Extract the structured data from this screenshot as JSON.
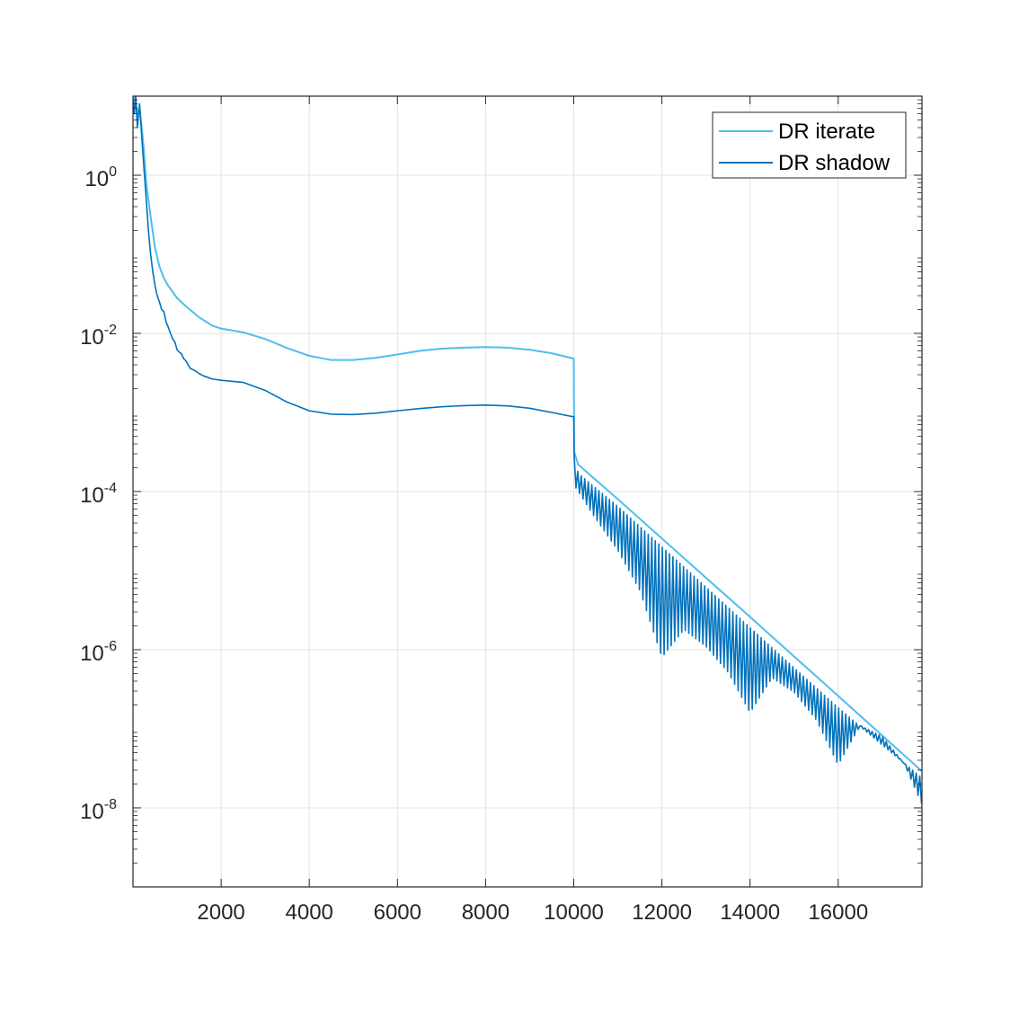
{
  "chart_data": {
    "type": "line",
    "title": "",
    "xlabel": "",
    "ylabel": "",
    "xlim": [
      0,
      17900
    ],
    "ylim": [
      1e-09,
      10
    ],
    "yscale": "log",
    "grid": true,
    "legend_placement": "top-right",
    "x_ticks": [
      {
        "value": 2000,
        "label": "2000"
      },
      {
        "value": 4000,
        "label": "4000"
      },
      {
        "value": 6000,
        "label": "6000"
      },
      {
        "value": 8000,
        "label": "8000"
      },
      {
        "value": 10000,
        "label": "10000"
      },
      {
        "value": 12000,
        "label": "12000"
      },
      {
        "value": 14000,
        "label": "14000"
      },
      {
        "value": 16000,
        "label": "16000"
      }
    ],
    "y_ticks": [
      {
        "value": 1,
        "base": "10",
        "exp": "0"
      },
      {
        "value": 0.01,
        "base": "10",
        "exp": "-2"
      },
      {
        "value": 0.0001,
        "base": "10",
        "exp": "-4"
      },
      {
        "value": 1e-06,
        "base": "10",
        "exp": "-6"
      },
      {
        "value": 1e-08,
        "base": "10",
        "exp": "-8"
      }
    ],
    "series": [
      {
        "name": "DR iterate",
        "color": "#4DBEEE",
        "points": [
          [
            0,
            8
          ],
          [
            50,
            10
          ],
          [
            100,
            6
          ],
          [
            150,
            7
          ],
          [
            200,
            4
          ],
          [
            250,
            2
          ],
          [
            300,
            0.8
          ],
          [
            400,
            0.3
          ],
          [
            500,
            0.12
          ],
          [
            600,
            0.07
          ],
          [
            700,
            0.05
          ],
          [
            800,
            0.04
          ],
          [
            1000,
            0.028
          ],
          [
            1200,
            0.022
          ],
          [
            1500,
            0.016
          ],
          [
            1800,
            0.0125
          ],
          [
            2000,
            0.0115
          ],
          [
            2500,
            0.0103
          ],
          [
            3000,
            0.0085
          ],
          [
            3500,
            0.0065
          ],
          [
            4000,
            0.0052
          ],
          [
            4500,
            0.0046
          ],
          [
            5000,
            0.0046
          ],
          [
            5500,
            0.0049
          ],
          [
            6000,
            0.0054
          ],
          [
            6500,
            0.006
          ],
          [
            7000,
            0.0064
          ],
          [
            7500,
            0.0066
          ],
          [
            8000,
            0.0067
          ],
          [
            8500,
            0.0066
          ],
          [
            9000,
            0.0062
          ],
          [
            9500,
            0.0056
          ],
          [
            10000,
            0.0048
          ],
          [
            10010,
            0.00032
          ],
          [
            10100,
            0.00022
          ],
          [
            10500,
            0.00014
          ],
          [
            11000,
            8e-05
          ],
          [
            12000,
            2.55e-05
          ],
          [
            13000,
            8.1e-06
          ],
          [
            14000,
            2.6e-06
          ],
          [
            15000,
            8.2e-07
          ],
          [
            16000,
            2.6e-07
          ],
          [
            17000,
            8.2e-08
          ],
          [
            17900,
            2.9e-08
          ]
        ]
      },
      {
        "name": "DR shadow",
        "color": "#0072BD",
        "points": [
          [
            0,
            9
          ],
          [
            30,
            6
          ],
          [
            60,
            10
          ],
          [
            100,
            4
          ],
          [
            150,
            8
          ],
          [
            200,
            3
          ],
          [
            250,
            1.2
          ],
          [
            300,
            0.5
          ],
          [
            350,
            0.2
          ],
          [
            400,
            0.1
          ],
          [
            450,
            0.06
          ],
          [
            500,
            0.04
          ],
          [
            550,
            0.03
          ],
          [
            600,
            0.025
          ],
          [
            650,
            0.02
          ],
          [
            700,
            0.019
          ],
          [
            750,
            0.014
          ],
          [
            800,
            0.012
          ],
          [
            850,
            0.01
          ],
          [
            900,
            0.0085
          ],
          [
            950,
            0.0078
          ],
          [
            1000,
            0.0062
          ],
          [
            1050,
            0.0058
          ],
          [
            1100,
            0.0055
          ],
          [
            1150,
            0.0048
          ],
          [
            1200,
            0.0045
          ],
          [
            1300,
            0.0036
          ],
          [
            1400,
            0.0034
          ],
          [
            1500,
            0.0031
          ],
          [
            1600,
            0.0029
          ],
          [
            1800,
            0.00265
          ],
          [
            2000,
            0.00255
          ],
          [
            2500,
            0.0024
          ],
          [
            3000,
            0.0019
          ],
          [
            3500,
            0.00135
          ],
          [
            4000,
            0.00105
          ],
          [
            4500,
            0.00095
          ],
          [
            5000,
            0.00094
          ],
          [
            5500,
            0.00098
          ],
          [
            6000,
            0.00105
          ],
          [
            6500,
            0.00112
          ],
          [
            7000,
            0.00118
          ],
          [
            7500,
            0.00122
          ],
          [
            8000,
            0.00124
          ],
          [
            8500,
            0.00121
          ],
          [
            9000,
            0.00113
          ],
          [
            9500,
            0.001
          ],
          [
            10000,
            0.00088
          ],
          [
            10010,
            0.00028
          ]
        ],
        "oscillation": {
          "x_start": 10010,
          "x_end": 17900,
          "period": 80,
          "upper_envelope": [
            [
              10010,
              0.00028
            ],
            [
              10100,
              0.00017
            ],
            [
              11000,
              6.5e-05
            ],
            [
              12000,
              2e-05
            ],
            [
              13000,
              6.2e-06
            ],
            [
              14000,
              1.9e-06
            ],
            [
              15000,
              5.9e-07
            ],
            [
              16000,
              1.85e-07
            ],
            [
              17000,
              6.2e-08
            ],
            [
              17900,
              2.4e-08
            ]
          ],
          "lower_envelope": [
            [
              10010,
              0.00012
            ],
            [
              10500,
              4.5e-05
            ],
            [
              11000,
              1.8e-05
            ],
            [
              11500,
              5.6e-06
            ],
            [
              12000,
              8e-07
            ],
            [
              12500,
              1.8e-06
            ],
            [
              13000,
              1.1e-06
            ],
            [
              13500,
              5.2e-07
            ],
            [
              14000,
              1.6e-07
            ],
            [
              14500,
              4.4e-07
            ],
            [
              15000,
              2.9e-07
            ],
            [
              15500,
              1.3e-07
            ],
            [
              16000,
              3.5e-08
            ],
            [
              16500,
              1.1e-07
            ],
            [
              17000,
              8e-08
            ],
            [
              17500,
              3.6e-08
            ],
            [
              17900,
              1.1e-08
            ]
          ]
        }
      }
    ]
  }
}
